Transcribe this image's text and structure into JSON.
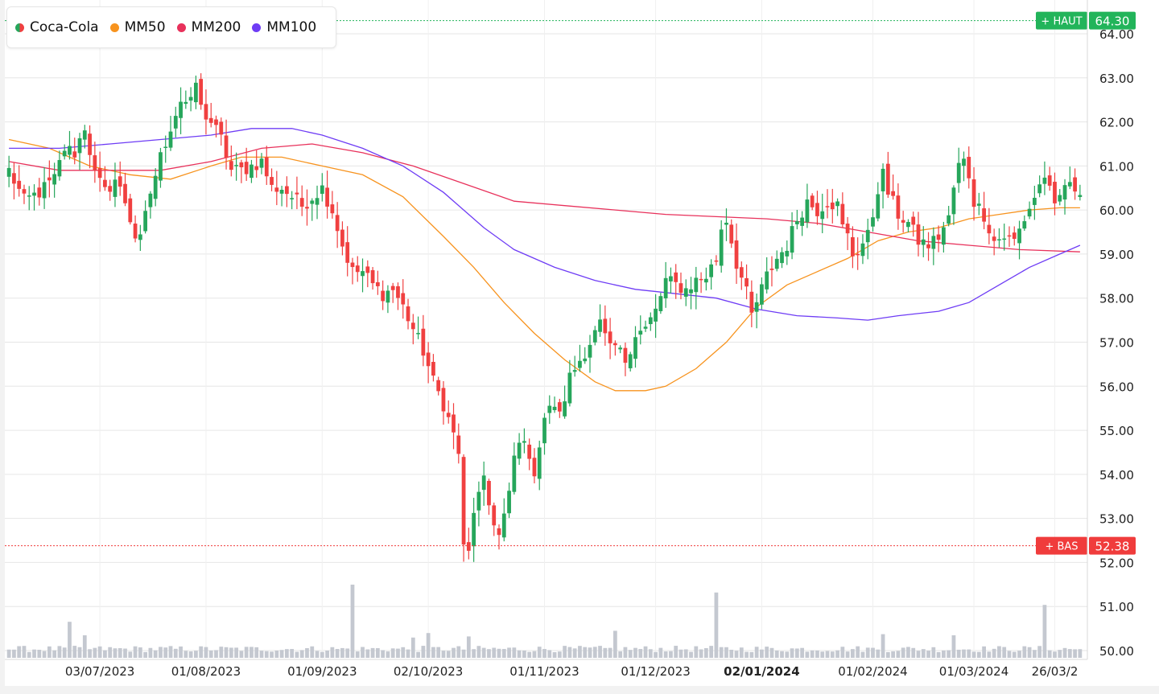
{
  "legend": {
    "items": [
      {
        "label": "Coca-Cola",
        "color": "split-green-red"
      },
      {
        "label": "MM50",
        "color": "#f7931e"
      },
      {
        "label": "MM200",
        "color": "#e8315b"
      },
      {
        "label": "MM100",
        "color": "#6e3cf5"
      }
    ]
  },
  "markers": {
    "high": {
      "label": "+ HAUT",
      "value": "64.30",
      "color": "#22b45a"
    },
    "low": {
      "label": "+ BAS",
      "value": "52.38",
      "color": "#f03c3c"
    }
  },
  "colors": {
    "up": "#26a65b",
    "down": "#f04040",
    "volume": "#c4c8d0",
    "grid": "#e6e6e6"
  },
  "chart_data": {
    "type": "candlestick",
    "title": "",
    "ylim": [
      49.8,
      64.6
    ],
    "y_ticks": [
      "50.00",
      "51.00",
      "52.00",
      "53.00",
      "54.00",
      "55.00",
      "56.00",
      "57.00",
      "58.00",
      "59.00",
      "60.00",
      "61.00",
      "62.00",
      "63.00",
      "64.00"
    ],
    "x_tick_labels": [
      {
        "label": "03/07/2023",
        "index": 18,
        "bold": false
      },
      {
        "label": "01/08/2023",
        "index": 39,
        "bold": false
      },
      {
        "label": "01/09/2023",
        "index": 62,
        "bold": false
      },
      {
        "label": "02/10/2023",
        "index": 83,
        "bold": false
      },
      {
        "label": "01/11/2023",
        "index": 106,
        "bold": false
      },
      {
        "label": "01/12/2023",
        "index": 128,
        "bold": false
      },
      {
        "label": "02/01/2024",
        "index": 149,
        "bold": true
      },
      {
        "label": "01/02/2024",
        "index": 171,
        "bold": false
      },
      {
        "label": "01/03/2024",
        "index": 191,
        "bold": false
      },
      {
        "label": "26/03/2",
        "index": 207,
        "bold": false
      }
    ],
    "total_bars": 213,
    "price_anchors": [
      [
        0,
        60.9
      ],
      [
        3,
        60.2
      ],
      [
        6,
        60.4
      ],
      [
        9,
        60.7
      ],
      [
        11,
        61.4
      ],
      [
        13,
        61.3
      ],
      [
        15,
        61.9
      ],
      [
        17,
        60.8
      ],
      [
        19,
        60.4
      ],
      [
        21,
        60.7
      ],
      [
        23,
        60.2
      ],
      [
        25,
        59.4
      ],
      [
        26,
        59.3
      ],
      [
        28,
        60.4
      ],
      [
        30,
        61.2
      ],
      [
        32,
        61.9
      ],
      [
        34,
        62.5
      ],
      [
        36,
        62.4
      ],
      [
        37,
        62.9
      ],
      [
        38,
        62.3
      ],
      [
        40,
        62.0
      ],
      [
        42,
        61.6
      ],
      [
        44,
        60.9
      ],
      [
        46,
        60.9
      ],
      [
        48,
        61.0
      ],
      [
        50,
        61.1
      ],
      [
        52,
        60.5
      ],
      [
        54,
        60.5
      ],
      [
        56,
        60.3
      ],
      [
        58,
        60.1
      ],
      [
        60,
        60.3
      ],
      [
        62,
        60.5
      ],
      [
        64,
        60.0
      ],
      [
        66,
        59.2
      ],
      [
        68,
        58.6
      ],
      [
        70,
        58.6
      ],
      [
        72,
        58.3
      ],
      [
        74,
        58.1
      ],
      [
        76,
        58.2
      ],
      [
        78,
        57.8
      ],
      [
        80,
        57.3
      ],
      [
        82,
        56.8
      ],
      [
        84,
        56.1
      ],
      [
        86,
        55.6
      ],
      [
        88,
        54.9
      ],
      [
        89,
        54.5
      ],
      [
        90,
        52.3
      ],
      [
        91,
        52.2
      ],
      [
        92,
        53.2
      ],
      [
        94,
        53.8
      ],
      [
        95,
        53.3
      ],
      [
        97,
        52.6
      ],
      [
        99,
        53.5
      ],
      [
        100,
        54.4
      ],
      [
        102,
        54.9
      ],
      [
        103,
        54.2
      ],
      [
        104,
        54.1
      ],
      [
        106,
        55.3
      ],
      [
        108,
        55.6
      ],
      [
        109,
        55.3
      ],
      [
        111,
        56.2
      ],
      [
        113,
        56.6
      ],
      [
        115,
        57.0
      ],
      [
        117,
        57.4
      ],
      [
        119,
        56.8
      ],
      [
        120,
        56.9
      ],
      [
        122,
        56.6
      ],
      [
        124,
        57.2
      ],
      [
        126,
        57.3
      ],
      [
        128,
        57.7
      ],
      [
        130,
        58.4
      ],
      [
        132,
        58.3
      ],
      [
        134,
        58.2
      ],
      [
        136,
        58.4
      ],
      [
        138,
        58.5
      ],
      [
        140,
        58.9
      ],
      [
        141,
        59.6
      ],
      [
        142,
        59.8
      ],
      [
        144,
        58.8
      ],
      [
        146,
        58.1
      ],
      [
        147,
        57.6
      ],
      [
        148,
        57.9
      ],
      [
        150,
        58.5
      ],
      [
        152,
        58.9
      ],
      [
        154,
        59.2
      ],
      [
        156,
        59.8
      ],
      [
        158,
        60.2
      ],
      [
        160,
        60.0
      ],
      [
        162,
        60.2
      ],
      [
        164,
        60.1
      ],
      [
        165,
        59.6
      ],
      [
        166,
        59.4
      ],
      [
        167,
        59.0
      ],
      [
        168,
        59.1
      ],
      [
        170,
        59.4
      ],
      [
        171,
        59.9
      ],
      [
        172,
        60.5
      ],
      [
        173,
        60.8
      ],
      [
        174,
        60.4
      ],
      [
        176,
        59.9
      ],
      [
        178,
        59.7
      ],
      [
        180,
        59.3
      ],
      [
        182,
        59.2
      ],
      [
        184,
        59.4
      ],
      [
        186,
        59.8
      ],
      [
        187,
        60.5
      ],
      [
        188,
        61.0
      ],
      [
        189,
        61.1
      ],
      [
        190,
        60.8
      ],
      [
        191,
        60.2
      ],
      [
        193,
        59.9
      ],
      [
        195,
        59.3
      ],
      [
        197,
        59.4
      ],
      [
        199,
        59.3
      ],
      [
        201,
        59.8
      ],
      [
        203,
        60.3
      ],
      [
        205,
        60.8
      ],
      [
        206,
        60.4
      ],
      [
        207,
        60.0
      ],
      [
        208,
        60.3
      ],
      [
        209,
        60.6
      ],
      [
        210,
        60.5
      ],
      [
        212,
        60.5
      ]
    ],
    "ma": [
      {
        "name": "MM50",
        "color": "#f7931e",
        "points": [
          [
            0,
            61.6
          ],
          [
            8,
            61.4
          ],
          [
            16,
            61.0
          ],
          [
            24,
            60.8
          ],
          [
            32,
            60.7
          ],
          [
            40,
            61.0
          ],
          [
            46,
            61.2
          ],
          [
            54,
            61.2
          ],
          [
            62,
            61.0
          ],
          [
            70,
            60.8
          ],
          [
            78,
            60.3
          ],
          [
            86,
            59.4
          ],
          [
            92,
            58.7
          ],
          [
            98,
            57.9
          ],
          [
            104,
            57.2
          ],
          [
            110,
            56.6
          ],
          [
            116,
            56.1
          ],
          [
            120,
            55.9
          ],
          [
            126,
            55.9
          ],
          [
            130,
            56.0
          ],
          [
            136,
            56.4
          ],
          [
            142,
            57.0
          ],
          [
            148,
            57.8
          ],
          [
            154,
            58.3
          ],
          [
            160,
            58.6
          ],
          [
            166,
            58.9
          ],
          [
            172,
            59.3
          ],
          [
            178,
            59.5
          ],
          [
            184,
            59.6
          ],
          [
            190,
            59.8
          ],
          [
            196,
            59.9
          ],
          [
            202,
            60.0
          ],
          [
            208,
            60.05
          ],
          [
            212,
            60.05
          ]
        ]
      },
      {
        "name": "MM200",
        "color": "#e8315b",
        "points": [
          [
            0,
            61.1
          ],
          [
            10,
            60.9
          ],
          [
            20,
            60.9
          ],
          [
            30,
            60.9
          ],
          [
            40,
            61.1
          ],
          [
            50,
            61.4
          ],
          [
            60,
            61.5
          ],
          [
            70,
            61.3
          ],
          [
            80,
            61.0
          ],
          [
            90,
            60.6
          ],
          [
            100,
            60.2
          ],
          [
            110,
            60.1
          ],
          [
            120,
            60.0
          ],
          [
            130,
            59.9
          ],
          [
            140,
            59.85
          ],
          [
            150,
            59.8
          ],
          [
            160,
            59.7
          ],
          [
            170,
            59.5
          ],
          [
            180,
            59.3
          ],
          [
            190,
            59.2
          ],
          [
            200,
            59.1
          ],
          [
            212,
            59.05
          ]
        ]
      },
      {
        "name": "MM100",
        "color": "#6e3cf5",
        "points": [
          [
            0,
            61.4
          ],
          [
            10,
            61.4
          ],
          [
            20,
            61.5
          ],
          [
            30,
            61.6
          ],
          [
            40,
            61.7
          ],
          [
            48,
            61.85
          ],
          [
            56,
            61.85
          ],
          [
            62,
            61.7
          ],
          [
            70,
            61.4
          ],
          [
            78,
            61.0
          ],
          [
            86,
            60.4
          ],
          [
            94,
            59.6
          ],
          [
            100,
            59.1
          ],
          [
            108,
            58.7
          ],
          [
            116,
            58.4
          ],
          [
            124,
            58.2
          ],
          [
            132,
            58.1
          ],
          [
            140,
            58.0
          ],
          [
            148,
            57.75
          ],
          [
            156,
            57.6
          ],
          [
            164,
            57.55
          ],
          [
            170,
            57.5
          ],
          [
            176,
            57.6
          ],
          [
            184,
            57.7
          ],
          [
            190,
            57.9
          ],
          [
            196,
            58.3
          ],
          [
            202,
            58.7
          ],
          [
            208,
            59.0
          ],
          [
            212,
            59.2
          ]
        ]
      }
    ],
    "volume_spikes": [
      [
        12,
        3.2
      ],
      [
        15,
        2.0
      ],
      [
        68,
        6.5
      ],
      [
        80,
        1.8
      ],
      [
        83,
        2.2
      ],
      [
        91,
        1.9
      ],
      [
        120,
        2.4
      ],
      [
        140,
        5.8
      ],
      [
        173,
        2.1
      ],
      [
        187,
        2.0
      ],
      [
        205,
        4.7
      ]
    ]
  }
}
